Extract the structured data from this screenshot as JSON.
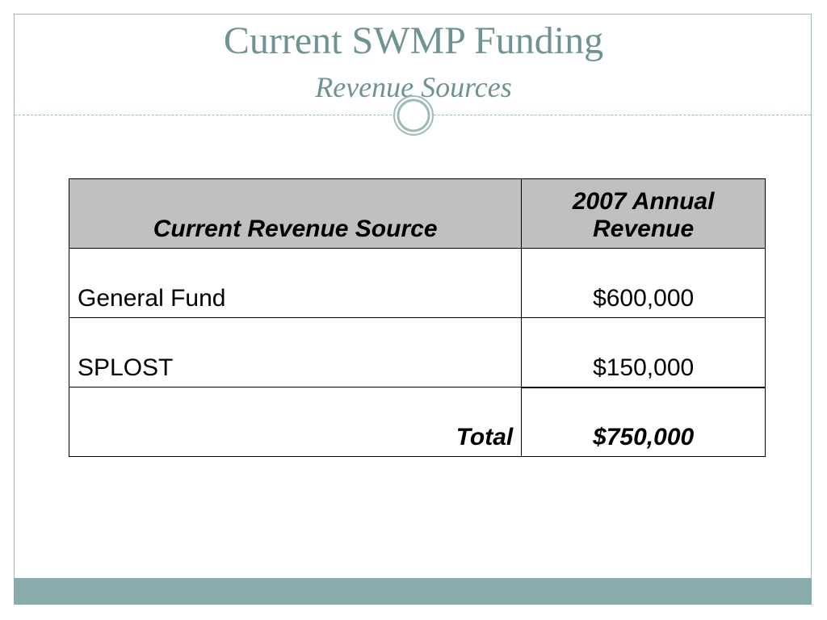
{
  "slide": {
    "title": "Current SWMP Funding",
    "subtitle": "Revenue Sources"
  },
  "table": {
    "headers": {
      "source": "Current Revenue Source",
      "amount_line1": "2007 Annual",
      "amount_line2": "Revenue"
    },
    "rows": [
      {
        "source": "General Fund",
        "amount": "$600,000"
      },
      {
        "source": "SPLOST",
        "amount": "$150,000"
      }
    ],
    "total": {
      "label": "Total",
      "amount": "$750,000"
    }
  },
  "colors": {
    "title": "#6f9393",
    "header_bg": "#c0c0c0",
    "footer_bar": "#8aabab",
    "frame": "#9fb8b8"
  }
}
